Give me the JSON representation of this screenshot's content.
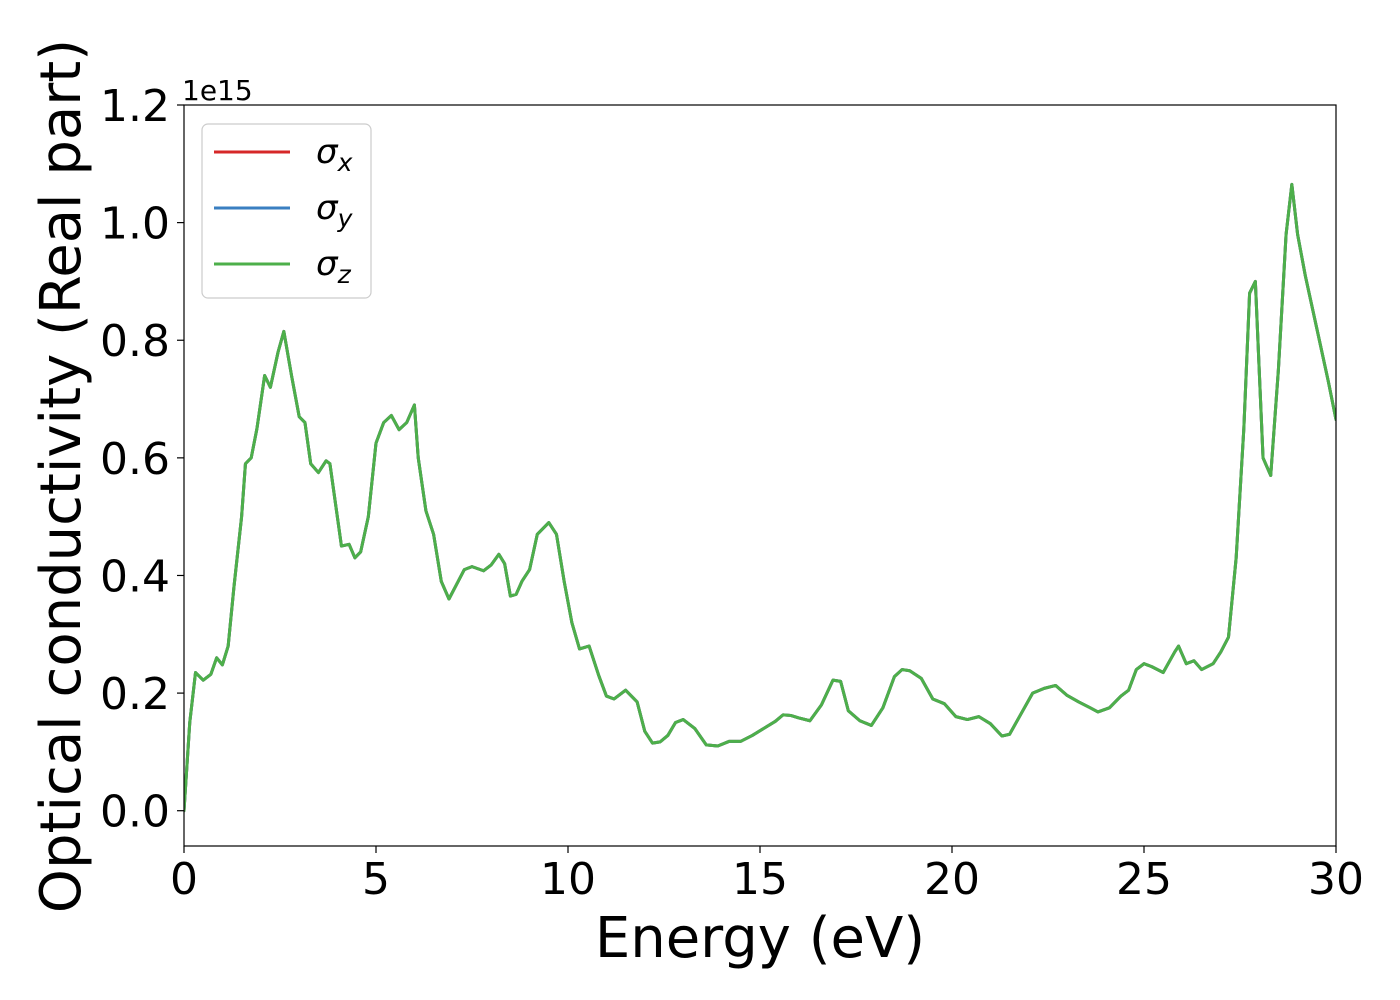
{
  "chart_data": {
    "type": "line",
    "xlabel": "Energy (eV)",
    "ylabel": "Optical conductivity (Real part)",
    "y_offset_label": "1e15",
    "xlim": [
      0,
      30
    ],
    "ylim": [
      -0.06,
      1.2
    ],
    "x_ticks": [
      0,
      5,
      10,
      15,
      20,
      25,
      30
    ],
    "x_tick_labels": [
      "0",
      "5",
      "10",
      "15",
      "20",
      "25",
      "30"
    ],
    "y_ticks": [
      0.0,
      0.2,
      0.4,
      0.6,
      0.8,
      1.0,
      1.2
    ],
    "y_tick_labels": [
      "0.0",
      "0.2",
      "0.4",
      "0.6",
      "0.8",
      "1.0",
      "1.2"
    ],
    "grid": false,
    "legend_position": "top-left",
    "x": [
      0.0,
      0.15,
      0.3,
      0.5,
      0.7,
      0.85,
      1.0,
      1.15,
      1.3,
      1.5,
      1.6,
      1.75,
      1.9,
      2.1,
      2.25,
      2.45,
      2.6,
      2.8,
      3.0,
      3.15,
      3.3,
      3.5,
      3.7,
      3.8,
      3.95,
      4.1,
      4.3,
      4.45,
      4.6,
      4.8,
      5.0,
      5.2,
      5.4,
      5.6,
      5.8,
      6.0,
      6.1,
      6.3,
      6.5,
      6.7,
      6.9,
      7.1,
      7.3,
      7.5,
      7.8,
      8.0,
      8.2,
      8.35,
      8.5,
      8.65,
      8.8,
      9.0,
      9.2,
      9.5,
      9.7,
      9.9,
      10.1,
      10.3,
      10.55,
      10.8,
      11.0,
      11.2,
      11.5,
      11.8,
      12.0,
      12.2,
      12.4,
      12.6,
      12.8,
      13.0,
      13.3,
      13.6,
      13.9,
      14.2,
      14.5,
      14.8,
      15.1,
      15.4,
      15.6,
      15.8,
      16.0,
      16.3,
      16.6,
      16.9,
      17.1,
      17.3,
      17.6,
      17.9,
      18.2,
      18.5,
      18.7,
      18.9,
      19.2,
      19.5,
      19.8,
      20.1,
      20.4,
      20.7,
      21.0,
      21.3,
      21.5,
      21.8,
      22.1,
      22.4,
      22.7,
      23.0,
      23.3,
      23.6,
      23.8,
      24.1,
      24.4,
      24.6,
      24.8,
      25.0,
      25.2,
      25.5,
      25.8,
      25.9,
      26.1,
      26.3,
      26.5,
      26.8,
      27.0,
      27.2,
      27.4,
      27.6,
      27.75,
      27.9,
      28.0,
      28.1,
      28.3,
      28.5,
      28.7,
      28.85,
      29.0,
      29.2,
      29.5,
      29.8,
      30.0
    ],
    "series": [
      {
        "name": "σx",
        "color": "#d62728",
        "y": [
          0.0,
          0.15,
          0.235,
          0.222,
          0.232,
          0.26,
          0.248,
          0.28,
          0.38,
          0.5,
          0.59,
          0.6,
          0.65,
          0.74,
          0.72,
          0.78,
          0.815,
          0.74,
          0.67,
          0.66,
          0.59,
          0.575,
          0.595,
          0.59,
          0.52,
          0.45,
          0.453,
          0.43,
          0.44,
          0.5,
          0.625,
          0.66,
          0.672,
          0.648,
          0.66,
          0.69,
          0.6,
          0.51,
          0.47,
          0.39,
          0.36,
          0.385,
          0.41,
          0.415,
          0.408,
          0.418,
          0.436,
          0.42,
          0.365,
          0.368,
          0.39,
          0.41,
          0.47,
          0.49,
          0.47,
          0.39,
          0.32,
          0.275,
          0.28,
          0.23,
          0.195,
          0.19,
          0.205,
          0.185,
          0.135,
          0.115,
          0.117,
          0.128,
          0.15,
          0.155,
          0.14,
          0.112,
          0.11,
          0.118,
          0.118,
          0.128,
          0.14,
          0.152,
          0.163,
          0.162,
          0.158,
          0.153,
          0.18,
          0.222,
          0.22,
          0.17,
          0.153,
          0.145,
          0.175,
          0.228,
          0.24,
          0.238,
          0.225,
          0.19,
          0.182,
          0.16,
          0.155,
          0.16,
          0.148,
          0.127,
          0.13,
          0.165,
          0.2,
          0.208,
          0.213,
          0.196,
          0.185,
          0.175,
          0.168,
          0.175,
          0.195,
          0.205,
          0.24,
          0.25,
          0.245,
          0.235,
          0.27,
          0.28,
          0.25,
          0.255,
          0.24,
          0.25,
          0.27,
          0.295,
          0.43,
          0.65,
          0.88,
          0.9,
          0.75,
          0.6,
          0.57,
          0.75,
          0.98,
          1.065,
          0.98,
          0.91,
          0.82,
          0.73,
          0.665
        ]
      },
      {
        "name": "σy",
        "color": "#3a7fc1",
        "y": [
          0.0,
          0.15,
          0.235,
          0.222,
          0.232,
          0.26,
          0.248,
          0.28,
          0.38,
          0.5,
          0.59,
          0.6,
          0.65,
          0.74,
          0.72,
          0.78,
          0.815,
          0.74,
          0.67,
          0.66,
          0.59,
          0.575,
          0.595,
          0.59,
          0.52,
          0.45,
          0.453,
          0.43,
          0.44,
          0.5,
          0.625,
          0.66,
          0.672,
          0.648,
          0.66,
          0.69,
          0.6,
          0.51,
          0.47,
          0.39,
          0.36,
          0.385,
          0.41,
          0.415,
          0.408,
          0.418,
          0.436,
          0.42,
          0.365,
          0.368,
          0.39,
          0.41,
          0.47,
          0.49,
          0.47,
          0.39,
          0.32,
          0.275,
          0.28,
          0.23,
          0.195,
          0.19,
          0.205,
          0.185,
          0.135,
          0.115,
          0.117,
          0.128,
          0.15,
          0.155,
          0.14,
          0.112,
          0.11,
          0.118,
          0.118,
          0.128,
          0.14,
          0.152,
          0.163,
          0.162,
          0.158,
          0.153,
          0.18,
          0.222,
          0.22,
          0.17,
          0.153,
          0.145,
          0.175,
          0.228,
          0.24,
          0.238,
          0.225,
          0.19,
          0.182,
          0.16,
          0.155,
          0.16,
          0.148,
          0.127,
          0.13,
          0.165,
          0.2,
          0.208,
          0.213,
          0.196,
          0.185,
          0.175,
          0.168,
          0.175,
          0.195,
          0.205,
          0.24,
          0.25,
          0.245,
          0.235,
          0.27,
          0.28,
          0.25,
          0.255,
          0.24,
          0.25,
          0.27,
          0.295,
          0.43,
          0.65,
          0.88,
          0.9,
          0.75,
          0.6,
          0.57,
          0.75,
          0.98,
          1.065,
          0.98,
          0.91,
          0.82,
          0.73,
          0.665
        ]
      },
      {
        "name": "σz",
        "color": "#4daf4a",
        "y": [
          0.0,
          0.15,
          0.235,
          0.222,
          0.232,
          0.26,
          0.248,
          0.28,
          0.38,
          0.5,
          0.59,
          0.6,
          0.65,
          0.74,
          0.72,
          0.78,
          0.815,
          0.74,
          0.67,
          0.66,
          0.59,
          0.575,
          0.595,
          0.59,
          0.52,
          0.45,
          0.453,
          0.43,
          0.44,
          0.5,
          0.625,
          0.66,
          0.672,
          0.648,
          0.66,
          0.69,
          0.6,
          0.51,
          0.47,
          0.39,
          0.36,
          0.385,
          0.41,
          0.415,
          0.408,
          0.418,
          0.436,
          0.42,
          0.365,
          0.368,
          0.39,
          0.41,
          0.47,
          0.49,
          0.47,
          0.39,
          0.32,
          0.275,
          0.28,
          0.23,
          0.195,
          0.19,
          0.205,
          0.185,
          0.135,
          0.115,
          0.117,
          0.128,
          0.15,
          0.155,
          0.14,
          0.112,
          0.11,
          0.118,
          0.118,
          0.128,
          0.14,
          0.152,
          0.163,
          0.162,
          0.158,
          0.153,
          0.18,
          0.222,
          0.22,
          0.17,
          0.153,
          0.145,
          0.175,
          0.228,
          0.24,
          0.238,
          0.225,
          0.19,
          0.182,
          0.16,
          0.155,
          0.16,
          0.148,
          0.127,
          0.13,
          0.165,
          0.2,
          0.208,
          0.213,
          0.196,
          0.185,
          0.175,
          0.168,
          0.175,
          0.195,
          0.205,
          0.24,
          0.25,
          0.245,
          0.235,
          0.27,
          0.28,
          0.25,
          0.255,
          0.24,
          0.25,
          0.27,
          0.295,
          0.43,
          0.65,
          0.88,
          0.9,
          0.75,
          0.6,
          0.57,
          0.75,
          0.98,
          1.065,
          0.98,
          0.91,
          0.82,
          0.73,
          0.665
        ]
      }
    ]
  }
}
